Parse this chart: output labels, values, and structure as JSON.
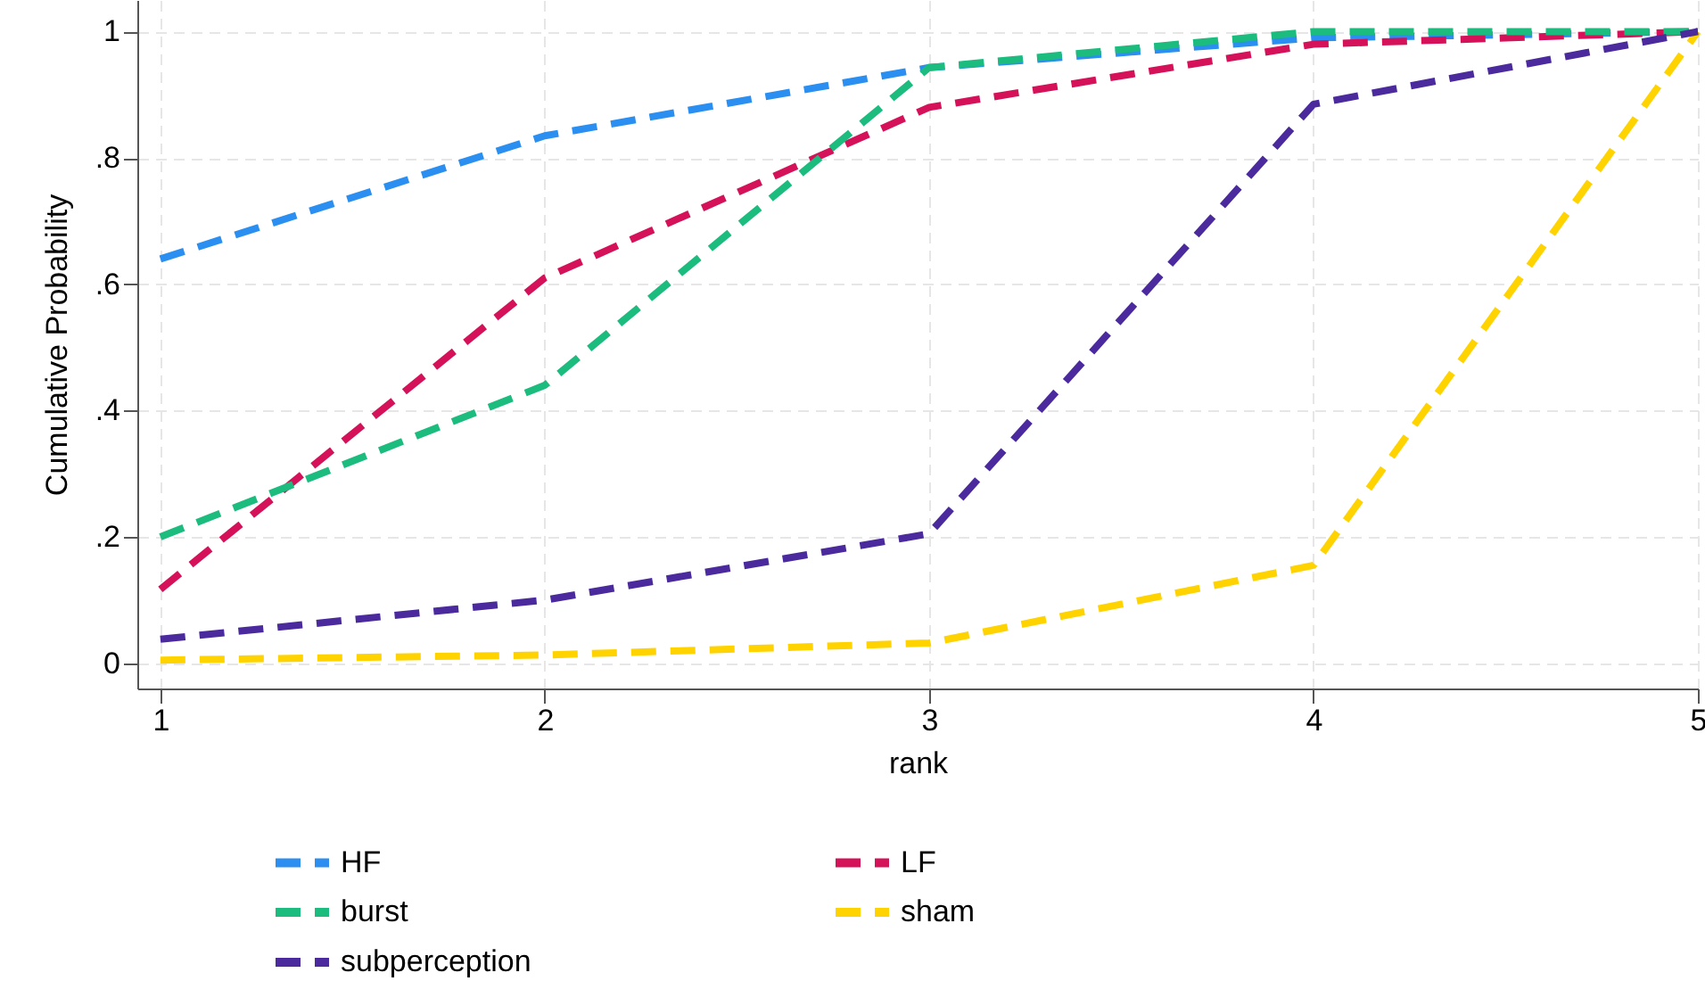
{
  "chart_data": {
    "type": "line",
    "xlabel": "rank",
    "ylabel": "Cumulative Probability",
    "x": [
      1,
      2,
      3,
      4,
      5
    ],
    "xlim": [
      0.94,
      5
    ],
    "xticks": [
      1,
      2,
      3,
      4,
      5
    ],
    "ylim": [
      -0.04,
      1.05
    ],
    "yticks": [
      0,
      {
        "value": 0.2,
        "label": ".2"
      },
      {
        "value": 0.4,
        "label": ".4"
      },
      {
        "value": 0.6,
        "label": ".6"
      },
      {
        "value": 0.8,
        "label": ".8"
      },
      1
    ],
    "grid": true,
    "legend": "bottom",
    "line_style": "dashed",
    "marker": "none",
    "series": [
      {
        "name": "HF",
        "color": "#2a8ff0",
        "values": [
          0.64,
          0.835,
          0.943,
          0.99,
          1
        ]
      },
      {
        "name": "LF",
        "color": "#d41159",
        "values": [
          0.117,
          0.61,
          0.88,
          0.98,
          1
        ]
      },
      {
        "name": "burst",
        "color": "#1bbc7d",
        "values": [
          0.2,
          0.44,
          0.943,
          1,
          1
        ]
      },
      {
        "name": "sham",
        "color": "#ffd300",
        "values": [
          0.005,
          0.013,
          0.032,
          0.155,
          1
        ]
      },
      {
        "name": "subperception",
        "color": "#4b2a9d",
        "values": [
          0.038,
          0.1,
          0.205,
          0.885,
          1
        ]
      }
    ]
  }
}
